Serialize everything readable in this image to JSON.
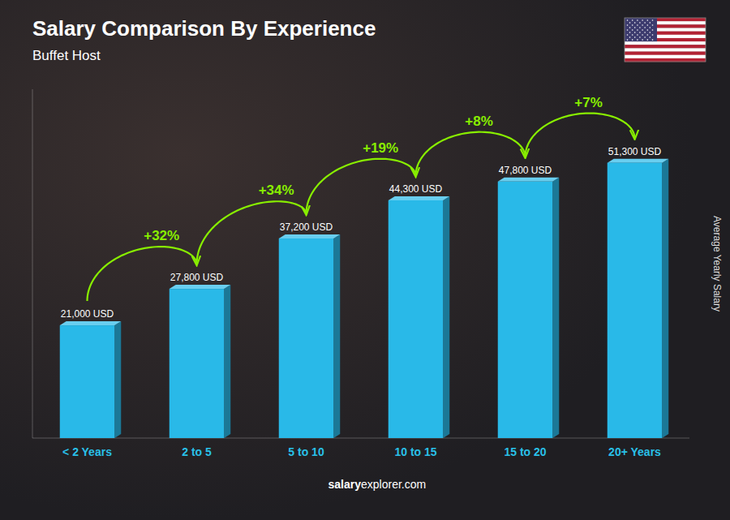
{
  "chart_data": {
    "type": "bar",
    "title": "Salary Comparison By Experience",
    "subtitle": "Buffet Host",
    "categories": [
      "< 2 Years",
      "2 to 5",
      "5 to 10",
      "10 to 15",
      "15 to 20",
      "20+ Years"
    ],
    "values": [
      21000,
      27800,
      37200,
      44300,
      47800,
      51300
    ],
    "value_labels": [
      "21,000 USD",
      "27,800 USD",
      "37,200 USD",
      "44,300 USD",
      "47,800 USD",
      "51,300 USD"
    ],
    "data_labels": true,
    "color": "#29b9e8",
    "ylabel": "Average Yearly Salary",
    "ylim": [
      0,
      65000
    ],
    "tick_labels": false,
    "grid": false,
    "annotations": [
      {
        "text": "+32%",
        "color": "#88ee00"
      },
      {
        "text": "+34%",
        "color": "#88ee00"
      },
      {
        "text": "+19%",
        "color": "#88ee00"
      },
      {
        "text": "+8%",
        "color": "#88ee00"
      },
      {
        "text": "+7%",
        "color": "#88ee00"
      }
    ],
    "footer": [
      "salary",
      "explorer.com"
    ]
  }
}
